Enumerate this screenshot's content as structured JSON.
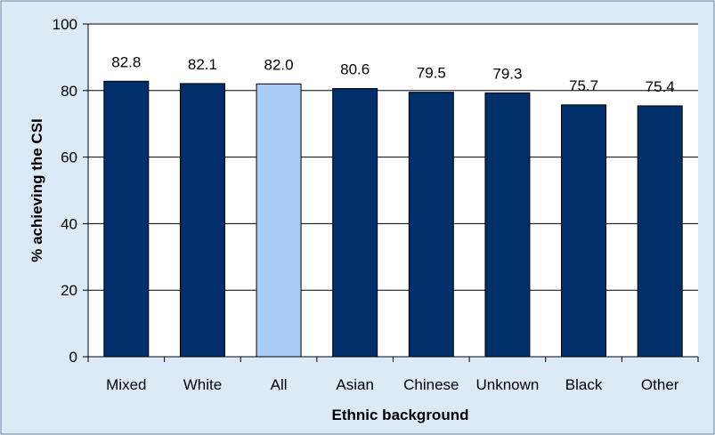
{
  "chart_data": {
    "type": "bar",
    "title": "",
    "xlabel": "Ethnic background",
    "ylabel": "% achieving the CSI",
    "categories": [
      "Mixed",
      "White",
      "All",
      "Asian",
      "Chinese",
      "Unknown",
      "Black",
      "Other"
    ],
    "values": [
      82.8,
      82.1,
      82.0,
      80.6,
      79.5,
      79.3,
      75.7,
      75.4
    ],
    "value_labels": [
      "82.8",
      "82.1",
      "82.0",
      "80.6",
      "79.5",
      "79.3",
      "75.7",
      "75.4"
    ],
    "highlight_category": "All",
    "ylim": [
      0,
      100
    ],
    "yticks": [
      0,
      20,
      40,
      60,
      80,
      100
    ],
    "ytick_labels": [
      "0",
      "20",
      "40",
      "60",
      "80",
      "100"
    ],
    "grid": true,
    "legend": "none",
    "colors": {
      "bar": "#002F6C",
      "highlight_bar": "#A9CDF7",
      "bar_edge": "#000000",
      "plot_background": "#FFFFFF",
      "outer_background": "#DCE9F7",
      "border": "#5B7FA8",
      "gridline": "#000000"
    }
  }
}
